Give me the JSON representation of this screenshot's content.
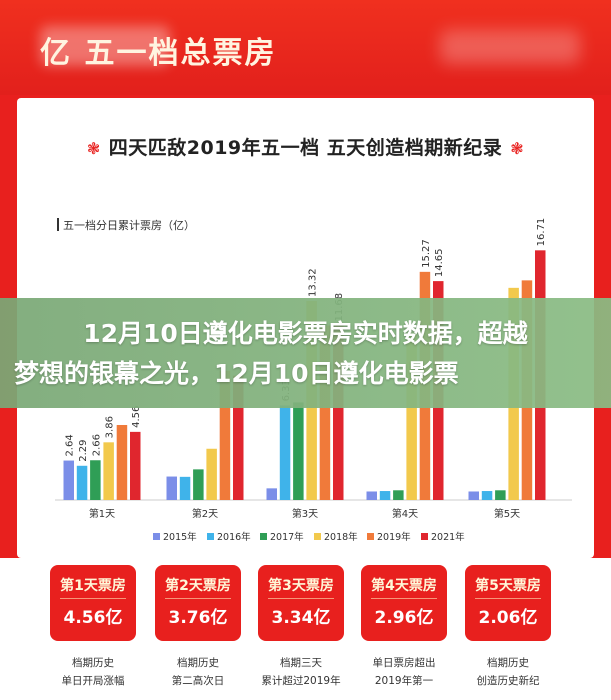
{
  "header": {
    "title": "亿 五一档总票房"
  },
  "panel": {
    "title": "四天匹敌2019年五一档 五天创造档期新纪录",
    "deco": "❃"
  },
  "chart_data": {
    "type": "bar",
    "ylabel": "五一档分日累计票房（亿）",
    "categories": [
      "第1天",
      "第2天",
      "第3天",
      "第4天",
      "第5天"
    ],
    "ylim": [
      0,
      17
    ],
    "series": [
      {
        "name": "2015年",
        "color": "#7b8ee8",
        "values": [
          2.64,
          1.57,
          0.78,
          0.57,
          0.57
        ],
        "labels": [
          "2.64",
          "",
          "",
          "",
          ""
        ]
      },
      {
        "name": "2016年",
        "color": "#3fb3ea",
        "values": [
          2.29,
          1.55,
          6.33,
          0.6,
          0.6
        ],
        "labels": [
          "2.29",
          "",
          "6.33",
          "",
          ""
        ]
      },
      {
        "name": "2017年",
        "color": "#2f9e56",
        "values": [
          2.66,
          2.05,
          6.53,
          0.65,
          0.65
        ],
        "labels": [
          "2.66",
          "",
          "",
          "",
          ""
        ]
      },
      {
        "name": "2018年",
        "color": "#f2c94c",
        "values": [
          3.86,
          3.43,
          13.32,
          11.2,
          14.2
        ],
        "labels": [
          "3.86",
          "",
          "13.32",
          "",
          ""
        ]
      },
      {
        "name": "2019年",
        "color": "#f07a3a",
        "values": [
          5.02,
          8.65,
          11.68,
          15.27,
          14.7
        ],
        "labels": [
          "",
          "",
          "",
          "15.27",
          ""
        ]
      },
      {
        "name": "2021年",
        "color": "#e0262e",
        "values": [
          4.56,
          8.32,
          11.68,
          14.65,
          16.71
        ],
        "labels": [
          "4.56",
          "",
          "11.68",
          "14.65",
          "16.71"
        ]
      }
    ]
  },
  "overlay": {
    "line1": "12月10日遵化电影票房实时数据，超越",
    "line2": "梦想的银幕之光，12月10日遵化电影票"
  },
  "cards": [
    {
      "head": "第1天票房",
      "value": "4.56亿",
      "note1": "档期历史",
      "note2": "单日开局涨幅"
    },
    {
      "head": "第2天票房",
      "value": "3.76亿",
      "note1": "档期历史",
      "note2": "第二高次日"
    },
    {
      "head": "第3天票房",
      "value": "3.34亿",
      "note1": "档期三天",
      "note2": "累计超过2019年"
    },
    {
      "head": "第4天票房",
      "value": "2.96亿",
      "note1": "单日票房超出",
      "note2": "2019年第一"
    },
    {
      "head": "第5天票房",
      "value": "2.06亿",
      "note1": "档期历史",
      "note2": "创造历史新纪"
    }
  ],
  "colors": {
    "brand_red": "#e8201e",
    "overlay_green": "#86b482"
  }
}
